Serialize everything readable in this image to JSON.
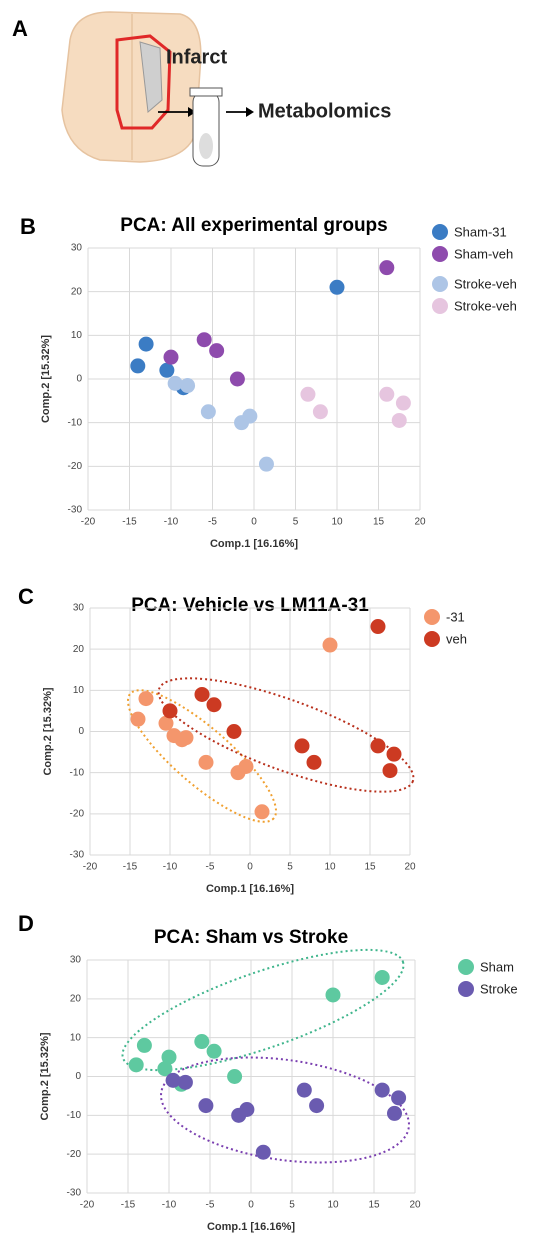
{
  "panel_labels": [
    "A",
    "B",
    "C",
    "D"
  ],
  "illustration": {
    "labels": [
      "Infarct",
      "Metabolomics"
    ]
  },
  "chart_data": [
    {
      "type": "scatter",
      "title": "PCA: All experimental groups",
      "x_label": "Comp.1 [16.16%]",
      "y_label": "Comp.2 [15.32%]",
      "xlim": [
        -20,
        20
      ],
      "xticks": [
        -20,
        -15,
        -10,
        -5,
        0,
        5,
        10,
        15,
        20
      ],
      "ylim": [
        -30,
        30
      ],
      "yticks": [
        -30,
        -20,
        -10,
        0,
        10,
        20,
        30
      ],
      "series": [
        {
          "name": "Sham-31",
          "color": "#3b7cc4",
          "x": [
            -13,
            -14,
            -10.5,
            -8.5,
            10
          ],
          "values": [
            8,
            3,
            2,
            -2,
            21
          ]
        },
        {
          "name": "Sham-veh",
          "color": "#8e4bad",
          "x": [
            -10,
            -6,
            -4.5,
            -2,
            16
          ],
          "values": [
            5,
            9,
            6.5,
            0,
            25.5
          ]
        },
        {
          "name": "Stroke-veh",
          "color": "#adc5e6",
          "x": [
            -9.5,
            -8,
            -5.5,
            -1.5,
            -0.5,
            1.5
          ],
          "values": [
            -1,
            -1.5,
            -7.5,
            -10,
            -8.5,
            -19.5
          ]
        },
        {
          "name": "Stroke-veh",
          "color": "#e6c5df",
          "x": [
            6.5,
            8,
            16,
            18,
            17.5
          ],
          "values": [
            -3.5,
            -7.5,
            -3.5,
            -5.5,
            -9.5
          ]
        }
      ]
    },
    {
      "type": "scatter",
      "title": "PCA: Vehicle vs LM11A-31",
      "x_label": "Comp.1 [16.16%]",
      "y_label": "Comp.2 [15.32%]",
      "xlim": [
        -20,
        20
      ],
      "xticks": [
        -20,
        -15,
        -10,
        -5,
        0,
        5,
        10,
        15,
        20
      ],
      "ylim": [
        -30,
        30
      ],
      "yticks": [
        -30,
        -20,
        -10,
        0,
        10,
        20,
        30
      ],
      "series": [
        {
          "name": "-31",
          "color": "#f4966c",
          "x": [
            -13,
            -14,
            -10.5,
            -9.5,
            -8.5,
            -8,
            -5.5,
            -1.5,
            -0.5,
            1.5,
            10
          ],
          "values": [
            8,
            3,
            2,
            -1,
            -2,
            -1.5,
            -7.5,
            -10,
            -8.5,
            -19.5,
            21
          ]
        },
        {
          "name": "veh",
          "color": "#cc3a22",
          "x": [
            -10,
            -6,
            -4.5,
            -2,
            6.5,
            8,
            16,
            18,
            17.5,
            16
          ],
          "values": [
            5,
            9,
            6.5,
            0,
            -3.5,
            -7.5,
            -3.5,
            -5.5,
            -9.5,
            25.5
          ]
        }
      ]
    },
    {
      "type": "scatter",
      "title": "PCA: Sham vs Stroke",
      "x_label": "Comp.1 [16.16%]",
      "y_label": "Comp.2 [15.32%]",
      "xlim": [
        -20,
        20
      ],
      "xticks": [
        -20,
        -15,
        -10,
        -5,
        0,
        5,
        10,
        15,
        20
      ],
      "ylim": [
        -30,
        30
      ],
      "yticks": [
        -30,
        -20,
        -10,
        0,
        10,
        20,
        30
      ],
      "series": [
        {
          "name": "Sham",
          "color": "#5ec9a0",
          "x": [
            -13,
            -14,
            -10.5,
            -8.5,
            10,
            -10,
            -6,
            -4.5,
            -2,
            16
          ],
          "values": [
            8,
            3,
            2,
            -2,
            21,
            5,
            9,
            6.5,
            0,
            25.5
          ]
        },
        {
          "name": "Stroke",
          "color": "#6a5bb0",
          "x": [
            -9.5,
            -8,
            -5.5,
            -1.5,
            -0.5,
            1.5,
            6.5,
            8,
            16,
            18,
            17.5
          ],
          "values": [
            -1,
            -1.5,
            -7.5,
            -10,
            -8.5,
            -19.5,
            -3.5,
            -7.5,
            -3.5,
            -5.5,
            -9.5
          ]
        }
      ]
    }
  ]
}
